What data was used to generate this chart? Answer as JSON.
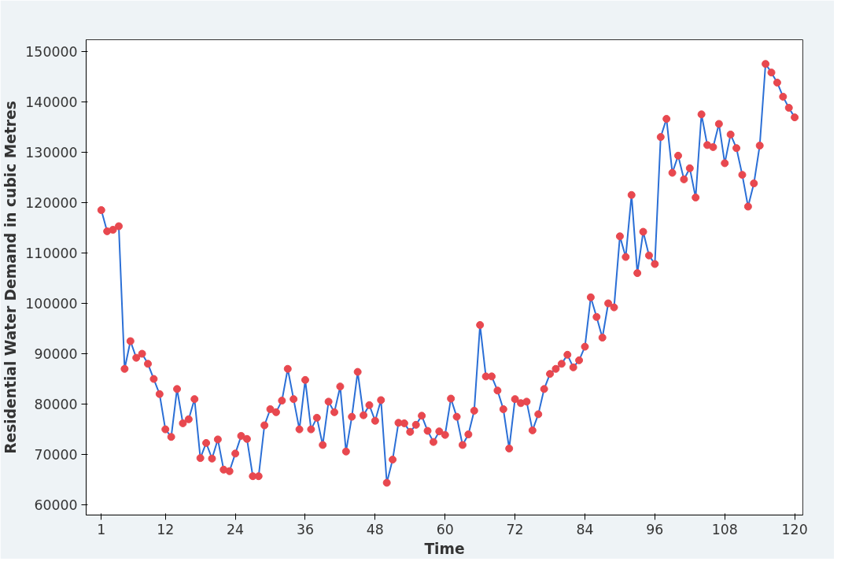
{
  "chart_data": {
    "type": "line",
    "xlabel": "Time",
    "ylabel": "Residential Water Demand in cubic Metres",
    "x": [
      1,
      2,
      3,
      4,
      5,
      6,
      7,
      8,
      9,
      10,
      11,
      12,
      13,
      14,
      15,
      16,
      17,
      18,
      19,
      20,
      21,
      22,
      23,
      24,
      25,
      26,
      27,
      28,
      29,
      30,
      31,
      32,
      33,
      34,
      35,
      36,
      37,
      38,
      39,
      40,
      41,
      42,
      43,
      44,
      45,
      46,
      47,
      48,
      49,
      50,
      51,
      52,
      53,
      54,
      55,
      56,
      57,
      58,
      59,
      60,
      61,
      62,
      63,
      64,
      65,
      66,
      67,
      68,
      69,
      70,
      71,
      72,
      73,
      74,
      75,
      76,
      77,
      78,
      79,
      80,
      81,
      82,
      83,
      84,
      85,
      86,
      87,
      88,
      89,
      90,
      91,
      92,
      93,
      94,
      95,
      96,
      97,
      98,
      99,
      100,
      101,
      102,
      103,
      104,
      105,
      106,
      107,
      108,
      109,
      110,
      111,
      112,
      113,
      114,
      115,
      116,
      117,
      118,
      119,
      120
    ],
    "series": [
      {
        "color": "#2b6fd6",
        "colors": [
          "#e8484f",
          "#e8484f",
          "#e8484f",
          "#e8484f",
          "#e8484f",
          "#e8484f",
          "#e8484f",
          "#e8484f",
          "#e8484f",
          "#e8484f",
          "#e8484f",
          "#e8484f",
          "#e8484f",
          "#e8484f",
          "#e8484f",
          "#e8484f",
          "#e8484f",
          "#e8484f",
          "#e8484f",
          "#e8484f",
          "#e8484f",
          "#e8484f",
          "#e8484f",
          "#e8484f",
          "#e8484f",
          "#e8484f",
          "#e8484f",
          "#e8484f",
          "#e8484f",
          "#e8484f",
          "#e8484f",
          "#e8484f",
          "#e8484f",
          "#e8484f",
          "#e8484f",
          "#e8484f",
          "#e8484f",
          "#e8484f",
          "#e8484f",
          "#e8484f",
          "#e8484f",
          "#e8484f",
          "#e8484f",
          "#e8484f",
          "#e8484f",
          "#e8484f",
          "#e8484f",
          "#e8484f",
          "#e8484f",
          "#e8484f",
          "#e8484f",
          "#e8484f",
          "#e8484f",
          "#e8484f",
          "#e8484f",
          "#e8484f",
          "#e8484f",
          "#e8484f",
          "#e8484f",
          "#e8484f",
          "#e8484f",
          "#e8484f",
          "#e8484f",
          "#e8484f",
          "#e8484f",
          "#e8484f",
          "#e8484f",
          "#e8484f",
          "#e8484f",
          "#e8484f",
          "#e8484f",
          "#e8484f",
          "#e8484f",
          "#e8484f",
          "#e8484f",
          "#e8484f",
          "#e8484f",
          "#e8484f",
          "#e8484f",
          "#e8484f",
          "#e8484f",
          "#e8484f",
          "#e8484f",
          "#e8484f",
          "#e8484f",
          "#e8484f",
          "#e8484f",
          "#e8484f",
          "#e8484f",
          "#e8484f",
          "#e8484f",
          "#e8484f",
          "#e8484f",
          "#e8484f",
          "#e8484f",
          "#e8484f",
          "#e8484f",
          "#e8484f",
          "#e8484f",
          "#e8484f",
          "#e8484f",
          "#e8484f",
          "#e8484f",
          "#e8484f",
          "#e8484f",
          "#e8484f",
          "#e8484f",
          "#e8484f",
          "#e8484f",
          "#e8484f",
          "#e8484f",
          "#e8484f",
          "#e8484f",
          "#e8484f",
          "#e8484f",
          "#e8484f",
          "#e8484f",
          "#e8484f",
          "#e8484f",
          "#e8484f"
        ],
        "values": [
          118500,
          114300,
          114600,
          115300,
          87000,
          92500,
          89200,
          90000,
          88000,
          85000,
          82000,
          75000,
          73500,
          83000,
          76200,
          77000,
          81000,
          69300,
          72300,
          69200,
          73000,
          67000,
          66700,
          70200,
          73700,
          73100,
          65700,
          65700,
          75800,
          79000,
          78400,
          80700,
          87000,
          81000,
          75000,
          84800,
          75000,
          77300,
          71900,
          80500,
          78400,
          83500,
          70600,
          77500,
          86400,
          77800,
          79800,
          76700,
          80800,
          64400,
          69000,
          76300,
          76200,
          74500,
          75900,
          77700,
          74700,
          72500,
          74600,
          73900,
          81100,
          77500,
          71900,
          74000,
          78700,
          95700,
          85500,
          85500,
          82700,
          79000,
          71200,
          81000,
          80200,
          80500,
          74800,
          78000,
          83000,
          86000,
          87000,
          88000,
          89800,
          87300,
          88700,
          91400,
          101200,
          97300,
          93200,
          100000,
          99200,
          113300,
          109200,
          121500,
          106000,
          114200,
          109500,
          107800,
          133000,
          136600,
          125900,
          129300,
          124600,
          126800,
          121000,
          137500,
          131400,
          131000,
          135600,
          127800,
          133500,
          130800,
          125500,
          119200,
          123800,
          131300,
          147500,
          145800,
          143800,
          141000,
          138800,
          136900
        ]
      }
    ],
    "xlim": [
      -1.6,
      121.4
    ],
    "ylim": [
      58000,
      152300
    ],
    "xticks": [
      1,
      12,
      24,
      36,
      48,
      60,
      72,
      84,
      96,
      108,
      120
    ],
    "yticks": [
      60000,
      70000,
      80000,
      90000,
      100000,
      110000,
      120000,
      130000,
      140000,
      150000
    ],
    "marker": "circle",
    "grid": false
  }
}
